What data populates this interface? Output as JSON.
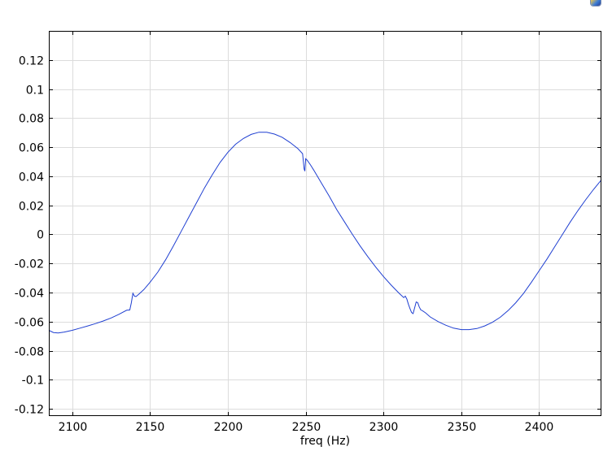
{
  "chart_data": {
    "type": "line",
    "title": "",
    "xlabel": "freq (Hz)",
    "ylabel": "",
    "xlim": [
      2085,
      2440
    ],
    "ylim": [
      -0.125,
      0.14
    ],
    "grid": true,
    "x_ticks": [
      2100,
      2150,
      2200,
      2250,
      2300,
      2350,
      2400
    ],
    "x_tick_labels": [
      "2100",
      "2150",
      "2200",
      "2250",
      "2300",
      "2350",
      "2400"
    ],
    "y_ticks": [
      0.12,
      0.1,
      0.08,
      0.06,
      0.04,
      0.02,
      0,
      -0.02,
      -0.04,
      -0.06,
      -0.08,
      -0.1,
      -0.12
    ],
    "y_tick_labels": [
      "0.12",
      "0.1",
      "0.08",
      "0.06",
      "0.04",
      "0.02",
      "0",
      "-0.02",
      "-0.04",
      "-0.06",
      "-0.08",
      "-0.1",
      "-0.12"
    ],
    "line_color": "#1f3fd1",
    "series": [
      {
        "x": [
          2085,
          2088,
          2091,
          2095,
          2100,
          2105,
          2110,
          2115,
          2120,
          2125,
          2130,
          2135,
          2137,
          2138,
          2139,
          2140,
          2141,
          2143,
          2146,
          2150,
          2155,
          2160,
          2165,
          2170,
          2175,
          2180,
          2185,
          2190,
          2195,
          2200,
          2205,
          2210,
          2215,
          2220,
          2225,
          2230,
          2235,
          2240,
          2245,
          2248,
          2249,
          2249.5,
          2250,
          2251,
          2253,
          2255,
          2260,
          2265,
          2270,
          2275,
          2280,
          2285,
          2290,
          2295,
          2300,
          2305,
          2310,
          2313,
          2314,
          2315,
          2316,
          2317,
          2318,
          2319,
          2320,
          2321,
          2322,
          2323,
          2324,
          2325,
          2327,
          2330,
          2335,
          2340,
          2345,
          2350,
          2355,
          2360,
          2365,
          2370,
          2375,
          2380,
          2385,
          2390,
          2395,
          2400,
          2405,
          2410,
          2415,
          2420,
          2425,
          2430,
          2435,
          2440
        ],
        "y": [
          -0.066,
          -0.0675,
          -0.0678,
          -0.0672,
          -0.066,
          -0.0645,
          -0.063,
          -0.0614,
          -0.0596,
          -0.0575,
          -0.055,
          -0.0522,
          -0.052,
          -0.047,
          -0.0405,
          -0.0425,
          -0.0428,
          -0.041,
          -0.038,
          -0.033,
          -0.026,
          -0.0175,
          -0.008,
          0.002,
          0.012,
          0.022,
          0.032,
          0.041,
          0.0495,
          0.0565,
          0.062,
          0.066,
          0.0688,
          0.0703,
          0.0702,
          0.069,
          0.0667,
          0.0632,
          0.059,
          0.0555,
          0.045,
          0.0435,
          0.052,
          0.051,
          0.048,
          0.0445,
          0.0355,
          0.0265,
          0.017,
          0.0085,
          0.0,
          -0.008,
          -0.0155,
          -0.0225,
          -0.029,
          -0.035,
          -0.0405,
          -0.0435,
          -0.0425,
          -0.0445,
          -0.048,
          -0.051,
          -0.0538,
          -0.0545,
          -0.0505,
          -0.0465,
          -0.047,
          -0.05,
          -0.052,
          -0.0525,
          -0.054,
          -0.0568,
          -0.06,
          -0.0625,
          -0.0645,
          -0.0655,
          -0.0655,
          -0.0648,
          -0.063,
          -0.0605,
          -0.057,
          -0.0525,
          -0.047,
          -0.0405,
          -0.033,
          -0.025,
          -0.017,
          -0.0085,
          0.0,
          0.0085,
          0.0165,
          0.024,
          0.031,
          0.0375
        ]
      }
    ]
  }
}
